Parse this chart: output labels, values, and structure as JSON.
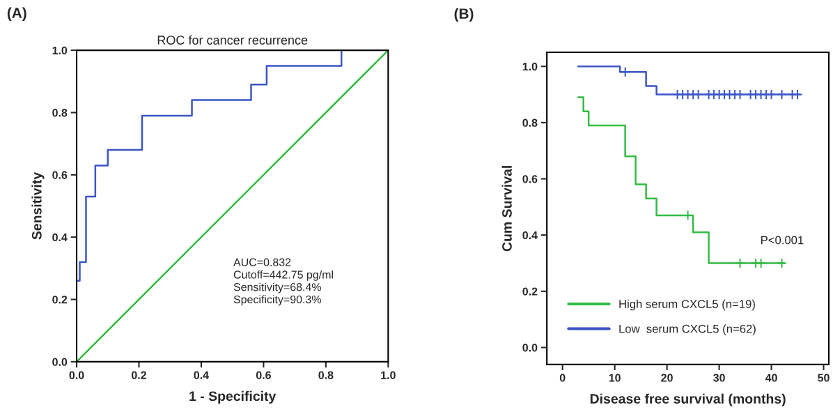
{
  "chart_data": [
    {
      "type": "line",
      "title": "ROC for cancer recurrence",
      "xlabel": "1 - Specificity",
      "ylabel": "Sensitivity",
      "xlim": [
        0,
        1
      ],
      "ylim": [
        0,
        1
      ],
      "xticks": [
        {
          "value": 0,
          "label": "0.0"
        },
        {
          "value": 0.2,
          "label": "0.2"
        },
        {
          "value": 0.4,
          "label": "0.4"
        },
        {
          "value": 0.6,
          "label": "0.6"
        },
        {
          "value": 0.8,
          "label": "0.8"
        },
        {
          "value": 1,
          "label": "1.0"
        }
      ],
      "yticks": [
        {
          "value": 0,
          "label": "0.0"
        },
        {
          "value": 0.2,
          "label": "0.2"
        },
        {
          "value": 0.4,
          "label": "0.4"
        },
        {
          "value": 0.6,
          "label": "0.6"
        },
        {
          "value": 0.8,
          "label": "0.8"
        },
        {
          "value": 1,
          "label": "1.0"
        }
      ],
      "series": [
        {
          "type": "step",
          "color": "#3b55c6",
          "x": [
            0,
            0.01,
            0.03,
            0.06,
            0.1,
            0.21,
            0.37,
            0.56,
            0.61,
            0.85
          ],
          "values": [
            0.26,
            0.32,
            0.53,
            0.63,
            0.68,
            0.79,
            0.84,
            0.89,
            0.95,
            1.0
          ]
        },
        {
          "type": "line",
          "color": "#33bb44",
          "x": [
            0,
            1
          ],
          "values": [
            0,
            1
          ]
        }
      ],
      "annotations": [
        "(A)",
        "AUC=0.832\nCutoff=442.75 pg/ml\nSensitivity=68.4%\nSpecificity=90.3%"
      ]
    },
    {
      "type": "line",
      "xlabel": "Disease free survival (months)",
      "ylabel": "Cum Survival",
      "xlim": [
        -3,
        51
      ],
      "ylim": [
        -0.06,
        1.05
      ],
      "xticks": [
        0,
        10,
        20,
        30,
        40,
        50
      ],
      "yticks": [
        {
          "value": 0,
          "label": "0.0"
        },
        {
          "value": 0.2,
          "label": "0.2"
        },
        {
          "value": 0.4,
          "label": "0.4"
        },
        {
          "value": 0.6,
          "label": "0.6"
        },
        {
          "value": 0.8,
          "label": "0.8"
        },
        {
          "value": 1,
          "label": "1.0"
        }
      ],
      "legend": "bottom left",
      "series": [
        {
          "type": "step",
          "name": "High serum CXCL5 (n=19)",
          "color": "#33bb44",
          "x": [
            3,
            4,
            5,
            12,
            14,
            16,
            18,
            25,
            28,
            42.5
          ],
          "values": [
            0.89,
            0.84,
            0.79,
            0.68,
            0.58,
            0.53,
            0.47,
            0.41,
            0.3,
            0.3
          ]
        },
        {
          "type": "step",
          "name": "Low  serum CXCL5 (n=62)",
          "color": "#3b55c6",
          "x": [
            3,
            11,
            16,
            18,
            45.5
          ],
          "values": [
            1.0,
            0.98,
            0.93,
            0.9,
            0.9
          ]
        },
        {
          "type": "scatter",
          "marker": "cross",
          "color": "#33bb44",
          "x": [
            24,
            34,
            37,
            38,
            42
          ],
          "values": [
            0.47,
            0.3,
            0.3,
            0.3,
            0.3
          ]
        },
        {
          "type": "scatter",
          "marker": "cross",
          "color": "#3b55c6",
          "x": [
            12,
            22,
            23,
            24,
            25,
            26,
            28,
            29,
            30,
            31,
            32,
            33,
            34,
            36,
            37,
            38,
            39,
            40,
            42,
            44,
            45
          ],
          "values": [
            0.98,
            0.9,
            0.9,
            0.9,
            0.9,
            0.9,
            0.9,
            0.9,
            0.9,
            0.9,
            0.9,
            0.9,
            0.9,
            0.9,
            0.9,
            0.9,
            0.9,
            0.9,
            0.9,
            0.9,
            0.9
          ]
        }
      ],
      "annotations": [
        "(B)",
        "P<0.001"
      ]
    }
  ]
}
